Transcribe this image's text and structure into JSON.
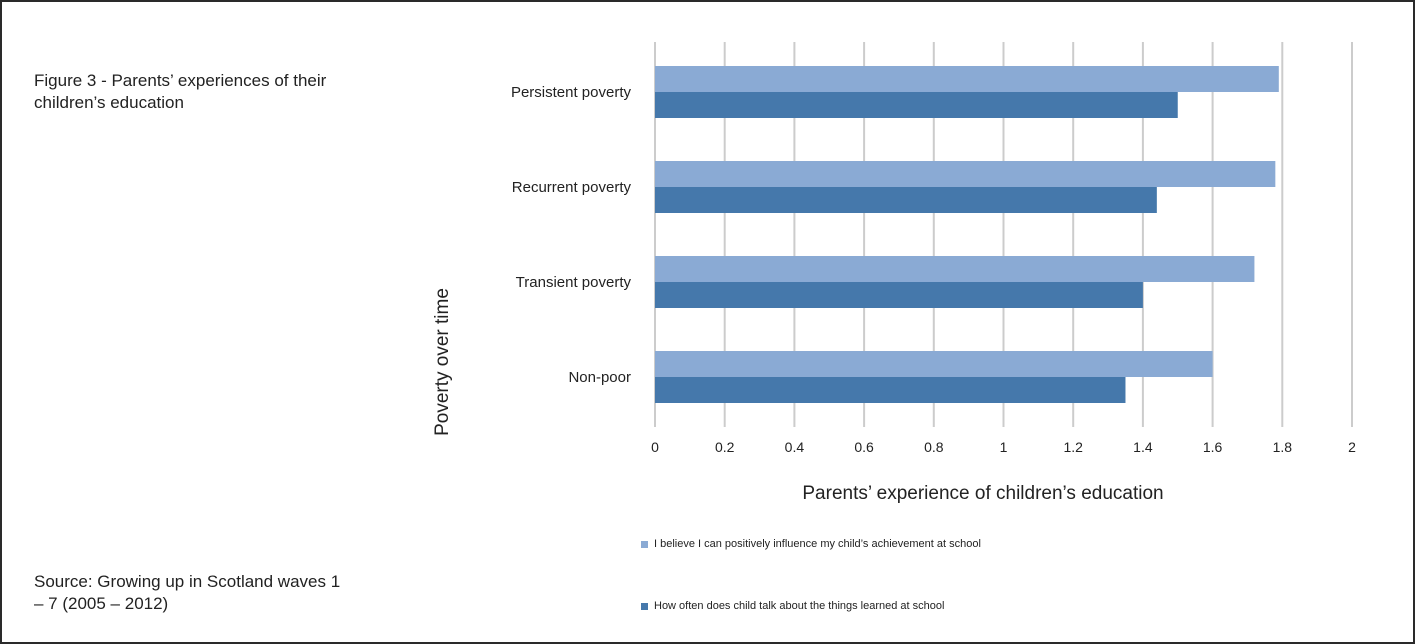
{
  "figure": {
    "title": "Figure 3 - Parents’ experiences of their children’s education",
    "source": "Source: Growing up in Scotland waves 1 – 7 (2005 – 2012)"
  },
  "colors": {
    "series_light": "#8aaad4",
    "series_dark": "#4578ab",
    "gridline": "#cccccc"
  },
  "chart_data": {
    "type": "bar",
    "orientation": "horizontal",
    "categories": [
      "Persistent poverty",
      "Recurrent poverty",
      "Transient poverty",
      "Non-poor"
    ],
    "series": [
      {
        "name": "I believe I can positively influence my child’s achievement at school",
        "values": [
          1.79,
          1.78,
          1.72,
          1.6
        ],
        "color": "#8aaad4"
      },
      {
        "name": "How often does child talk about the things learned at school",
        "values": [
          1.5,
          1.44,
          1.4,
          1.35
        ],
        "color": "#4578ab"
      }
    ],
    "xlabel": "Parents’ experience of children’s education",
    "ylabel": "Poverty over time",
    "xlim": [
      0,
      2
    ],
    "xticks": [
      "0",
      "0.2",
      "0.4",
      "0.6",
      "0.8",
      "1",
      "1.2",
      "1.4",
      "1.6",
      "1.8",
      "2"
    ],
    "grid": true,
    "legend": "bottom"
  }
}
